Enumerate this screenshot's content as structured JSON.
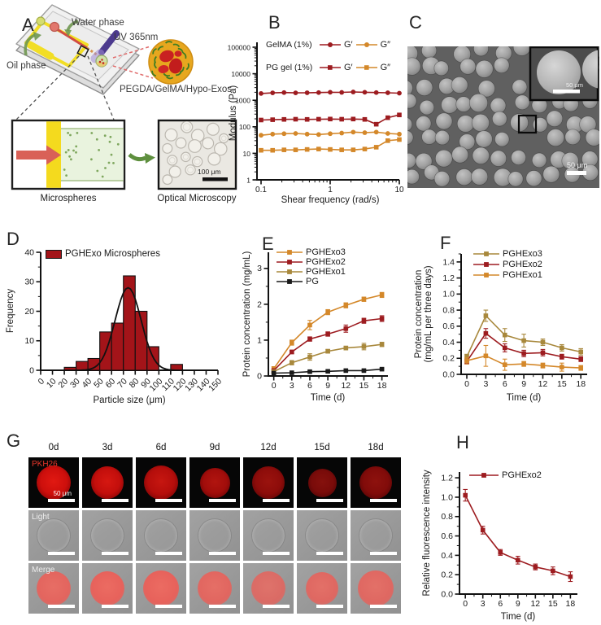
{
  "panels": {
    "A": {
      "label": "A",
      "water_phase": "Water phase",
      "uv": "UV 365nm",
      "oil_phase": "Oil phase",
      "droplet_label": "PEGDA/GelMA/Hypo-Exos",
      "microspheres_caption": "Microspheres",
      "optical_caption": "Optical Microscopy",
      "scale_bar": "100 μm"
    },
    "B": {
      "label": "B",
      "legend": {
        "gelma": "GelMA (1%)",
        "pg": "PG gel (1%)",
        "g_prime": "G′",
        "g_double": "G″"
      }
    },
    "C": {
      "label": "C",
      "scale_bar": "50 μm",
      "inset_scale_bar": "50 μm"
    },
    "D": {
      "label": "D"
    },
    "E": {
      "label": "E"
    },
    "F": {
      "label": "F"
    },
    "G": {
      "label": "G",
      "columns": [
        "0d",
        "3d",
        "6d",
        "9d",
        "12d",
        "15d",
        "18d"
      ],
      "row_labels": [
        "PKH26",
        "Light",
        "Merge"
      ],
      "scale_bar": "50 μm",
      "pkh26_intensity": [
        1.0,
        0.95,
        0.88,
        0.78,
        0.68,
        0.58,
        0.62
      ],
      "merge_intensity": [
        0.9,
        0.95,
        0.95,
        0.88,
        0.8,
        0.85,
        0.85
      ]
    },
    "H": {
      "label": "H"
    }
  },
  "colors": {
    "darkred": "#9d1c20",
    "orange": "#d4882a",
    "olive": "#a8883c",
    "black": "#1a1a1a",
    "hist_red": "#a31419"
  },
  "chart_data": [
    {
      "id": "B",
      "type": "line",
      "xlabel": "Shear frequency (rad/s)",
      "ylabel": "Modulus (Pa)",
      "xscale": "log",
      "yscale": "log",
      "xlim": [
        0.1,
        10
      ],
      "ylim": [
        1,
        100000
      ],
      "xticks": {
        "values": [
          0.1,
          1,
          10
        ],
        "labels": [
          "0.1",
          "1",
          "10"
        ]
      },
      "yticks": {
        "values": [
          1,
          10,
          100,
          1000,
          10000,
          100000
        ],
        "labels": [
          "1",
          "10",
          "100",
          "1000",
          "10000",
          "100000"
        ]
      },
      "x": [
        0.1,
        0.147,
        0.215,
        0.316,
        0.464,
        0.681,
        1,
        1.468,
        2.154,
        3.162,
        4.642,
        6.813,
        10
      ],
      "series": [
        {
          "name": "GelMA (1%) G′",
          "color": "darkred",
          "marker": "circle",
          "values": [
            1800,
            1900,
            1950,
            1900,
            1920,
            1950,
            2000,
            1980,
            2050,
            2000,
            1950,
            1920,
            1850
          ]
        },
        {
          "name": "GelMA (1%) G″",
          "color": "orange",
          "marker": "circle",
          "values": [
            48,
            53,
            55,
            56,
            53,
            51,
            55,
            58,
            63,
            60,
            63,
            56,
            53
          ]
        },
        {
          "name": "PG gel (1%) G′",
          "color": "darkred",
          "marker": "square",
          "values": [
            180,
            185,
            190,
            193,
            190,
            193,
            196,
            193,
            196,
            190,
            125,
            220,
            280
          ]
        },
        {
          "name": "PG gel (1%) G″",
          "color": "orange",
          "marker": "square",
          "values": [
            13,
            13,
            13.5,
            13.5,
            14,
            14.5,
            14,
            13.5,
            13.5,
            14.5,
            17,
            30,
            33
          ]
        }
      ]
    },
    {
      "id": "D",
      "type": "bar",
      "legend": "PGHExo Microspheres",
      "color": "hist_red",
      "xlabel": "Particle size (μm)",
      "ylabel": "Frequency",
      "xlim": [
        0,
        150
      ],
      "ylim": [
        0,
        40
      ],
      "yminor": 5,
      "xticks": {
        "values": [
          0,
          10,
          20,
          30,
          40,
          50,
          60,
          70,
          80,
          90,
          100,
          110,
          120,
          130,
          140,
          150
        ],
        "labels": [
          "0",
          "10",
          "20",
          "30",
          "40",
          "50",
          "60",
          "70",
          "80",
          "90",
          "100",
          "110",
          "120",
          "130",
          "140",
          "150"
        ]
      },
      "yticks": {
        "values": [
          0,
          10,
          20,
          30,
          40
        ],
        "labels": [
          "0",
          "10",
          "20",
          "30",
          "40"
        ]
      },
      "bin_width": 10,
      "bins": [
        [
          20,
          1
        ],
        [
          30,
          3
        ],
        [
          40,
          4
        ],
        [
          50,
          13
        ],
        [
          60,
          16
        ],
        [
          70,
          32
        ],
        [
          80,
          20
        ],
        [
          90,
          8
        ],
        [
          110,
          2
        ]
      ],
      "curve": {
        "mean": 74,
        "sd": 11,
        "amplitude": 28
      }
    },
    {
      "id": "E",
      "type": "line",
      "xlabel": "Time (d)",
      "ylabel": "Protein concentration (mg/mL)",
      "xlim": [
        -0.9,
        19
      ],
      "ylim": [
        0,
        3.45
      ],
      "xminor": 1.5,
      "yminor": 0.5,
      "xticks": {
        "values": [
          0,
          3,
          6,
          9,
          12,
          15,
          18
        ],
        "labels": [
          "0",
          "3",
          "6",
          "9",
          "12",
          "15",
          "18"
        ]
      },
      "yticks": {
        "values": [
          0,
          1,
          2,
          3
        ],
        "labels": [
          "0",
          "1",
          "2",
          "3"
        ]
      },
      "x": [
        0,
        3,
        6,
        9,
        12,
        15,
        18
      ],
      "series": [
        {
          "name": "PGHExo3",
          "color": "orange",
          "marker": "square",
          "values": [
            0.2,
            0.93,
            1.42,
            1.78,
            1.97,
            2.14,
            2.26
          ],
          "err": [
            0.06,
            0.07,
            0.13,
            0.07,
            0.07,
            0.06,
            0.07
          ]
        },
        {
          "name": "PGHExo2",
          "color": "darkred",
          "marker": "square",
          "values": [
            0.15,
            0.67,
            1.03,
            1.17,
            1.32,
            1.54,
            1.6
          ],
          "err": [
            0.04,
            0.05,
            0.06,
            0.06,
            0.1,
            0.07,
            0.08
          ]
        },
        {
          "name": "PGHExo1",
          "color": "olive",
          "marker": "square",
          "values": [
            0.12,
            0.37,
            0.53,
            0.69,
            0.78,
            0.82,
            0.88
          ],
          "err": [
            0.04,
            0.06,
            0.09,
            0.05,
            0.05,
            0.09,
            0.06
          ]
        },
        {
          "name": "PG",
          "color": "black",
          "marker": "square",
          "values": [
            0.08,
            0.09,
            0.12,
            0.13,
            0.15,
            0.15,
            0.19
          ],
          "err": [
            0.02,
            0.02,
            0.02,
            0.02,
            0.02,
            0.02,
            0.03
          ]
        }
      ]
    },
    {
      "id": "F",
      "type": "line",
      "xlabel": "Time (d)",
      "ylabel": [
        "Protein concentration",
        "(mg/mL per three days)"
      ],
      "xlim": [
        -0.9,
        19
      ],
      "ylim": [
        0,
        1.5
      ],
      "xminor": 1.5,
      "yminor": 0.1,
      "xticks": {
        "values": [
          0,
          3,
          6,
          9,
          12,
          15,
          18
        ],
        "labels": [
          "0",
          "3",
          "6",
          "9",
          "12",
          "15",
          "18"
        ]
      },
      "yticks": {
        "values": [
          0,
          0.2,
          0.4,
          0.6,
          0.8,
          1.0,
          1.2,
          1.4
        ],
        "labels": [
          "0.0",
          "0.2",
          "0.4",
          "0.6",
          "0.8",
          "1.0",
          "1.2",
          "1.4"
        ]
      },
      "x": [
        0,
        3,
        6,
        9,
        12,
        15,
        18
      ],
      "series": [
        {
          "name": "PGHExo3",
          "color": "olive",
          "marker": "square",
          "values": [
            0.22,
            0.73,
            0.49,
            0.42,
            0.4,
            0.33,
            0.28
          ],
          "err": [
            0.03,
            0.07,
            0.08,
            0.08,
            0.04,
            0.04,
            0.04
          ]
        },
        {
          "name": "PGHExo2",
          "color": "darkred",
          "marker": "square",
          "values": [
            0.16,
            0.51,
            0.33,
            0.26,
            0.27,
            0.22,
            0.19
          ],
          "err": [
            0.03,
            0.06,
            0.05,
            0.04,
            0.04,
            0.03,
            0.03
          ]
        },
        {
          "name": "PGHExo1",
          "color": "orange",
          "marker": "square",
          "values": [
            0.17,
            0.23,
            0.12,
            0.13,
            0.11,
            0.09,
            0.08
          ],
          "err": [
            0.04,
            0.13,
            0.07,
            0.03,
            0.03,
            0.05,
            0.03
          ]
        }
      ]
    },
    {
      "id": "H",
      "type": "line",
      "xlabel": "Time (d)",
      "ylabel": "Relative fluorescence intensity",
      "xlim": [
        -1,
        19.2
      ],
      "ylim": [
        0,
        1.26
      ],
      "xminor": 1.5,
      "yminor": 0.1,
      "xticks": {
        "values": [
          0,
          3,
          6,
          9,
          12,
          15,
          18
        ],
        "labels": [
          "0",
          "3",
          "6",
          "9",
          "12",
          "15",
          "18"
        ]
      },
      "yticks": {
        "values": [
          0,
          0.2,
          0.4,
          0.6,
          0.8,
          1.0,
          1.2
        ],
        "labels": [
          "0.0",
          "0.2",
          "0.4",
          "0.6",
          "0.8",
          "1.0",
          "1.2"
        ]
      },
      "x": [
        0,
        3,
        6,
        9,
        12,
        15,
        18
      ],
      "series": [
        {
          "name": "PGHExo2",
          "color": "darkred",
          "marker": "square",
          "values": [
            1.02,
            0.66,
            0.43,
            0.35,
            0.28,
            0.24,
            0.18
          ],
          "err": [
            0.06,
            0.04,
            0.03,
            0.04,
            0.03,
            0.04,
            0.05
          ]
        }
      ]
    }
  ]
}
